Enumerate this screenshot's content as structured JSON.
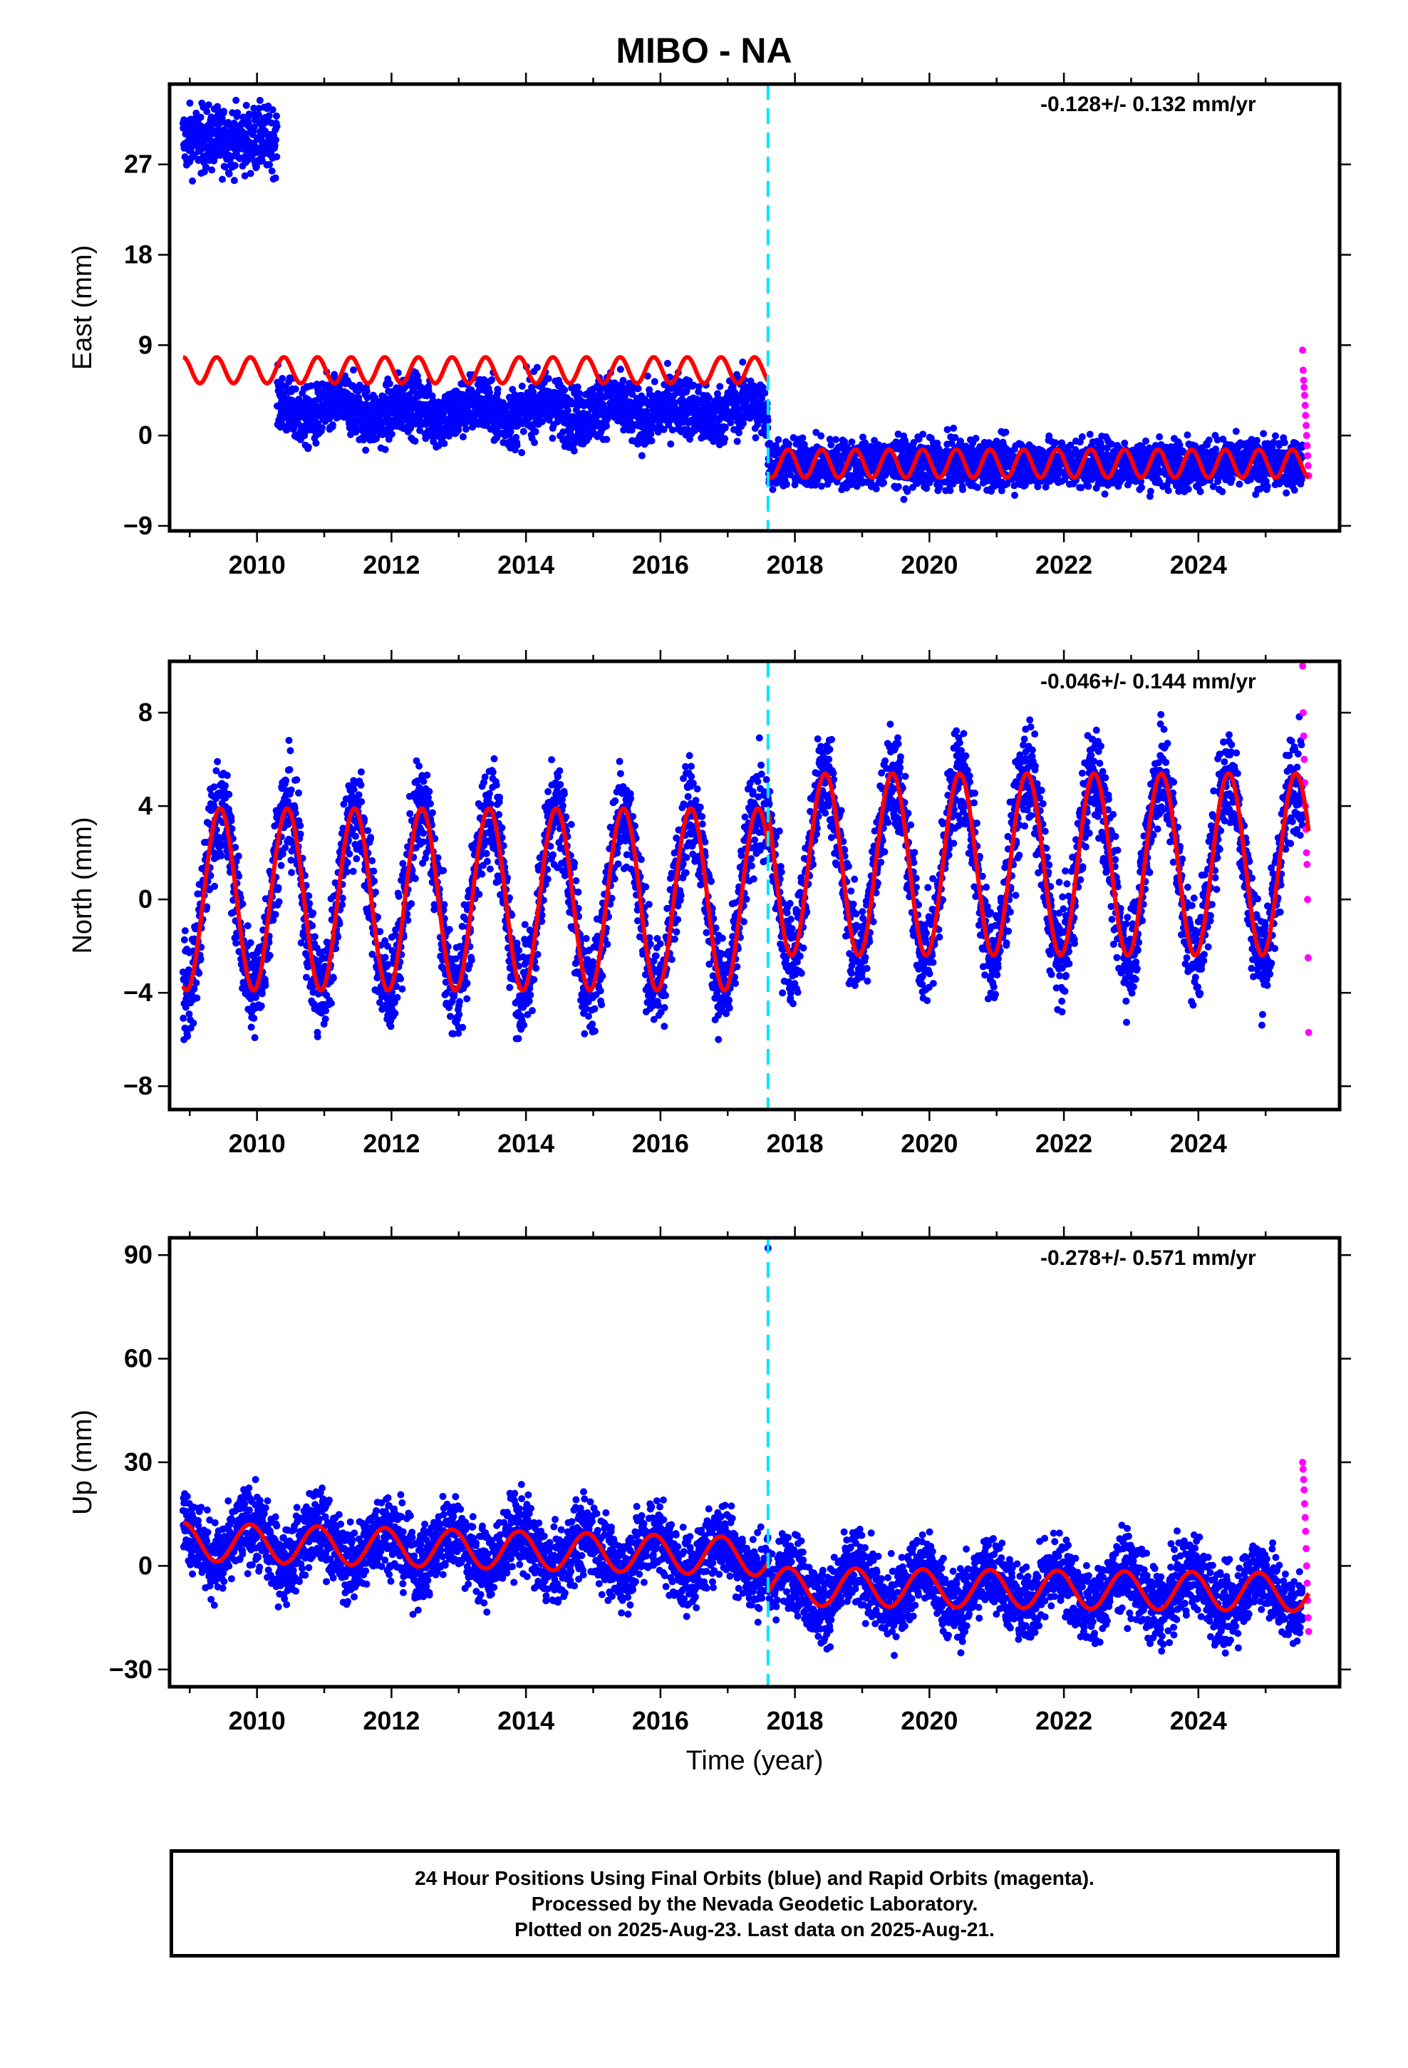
{
  "title": "MIBO - NA",
  "xlabel": "Time (year)",
  "caption": [
    "24 Hour Positions Using Final Orbits (blue) and Rapid Orbits (magenta).",
    "Processed by the Nevada Geodetic Laboratory.",
    "Plotted on 2025-Aug-23. Last data on 2025-Aug-21."
  ],
  "colors": {
    "final": "#0000ff",
    "rapid": "#ff00ff",
    "model": "#ff0000",
    "event": "#00e5ff"
  },
  "chart_data": [
    {
      "type": "scatter",
      "ylabel": "East (mm)",
      "rate": "-0.128+/- 0.132 mm/yr",
      "xlim": [
        2008.7,
        2026.1
      ],
      "ylim": [
        -9.5,
        35
      ],
      "xticks": [
        "2010",
        "2012",
        "2014",
        "2016",
        "2018",
        "2020",
        "2022",
        "2024"
      ],
      "yticks": [
        "-9",
        "0",
        "9",
        "18",
        "27"
      ],
      "event_line_x": 2017.6,
      "data_range": [
        2008.9,
        2025.64
      ],
      "model_segments": [
        {
          "x_start": 2008.9,
          "x_end": 2017.6,
          "offset": 6.5,
          "amplitude": 1.3
        },
        {
          "x_start": 2017.6,
          "x_end": 2025.64,
          "offset": -2.8,
          "amplitude": 1.4
        }
      ],
      "final_clusters": [
        {
          "x_start": 2008.9,
          "x_end": 2010.3,
          "mean": 29.5,
          "spread": 1.6
        },
        {
          "x_start": 2010.3,
          "x_end": 2017.6,
          "mean": 2.5,
          "spread": 1.5
        },
        {
          "x_start": 2017.6,
          "x_end": 2025.55,
          "mean": -2.8,
          "spread": 1.2
        }
      ],
      "rapid_points": {
        "x_start": 2025.55,
        "x_end": 2025.64,
        "values": [
          8.5,
          6.5,
          5.5,
          4.8,
          4,
          3,
          2,
          1,
          0,
          -1,
          -2,
          -3,
          -4
        ]
      }
    },
    {
      "type": "scatter",
      "ylabel": "North (mm)",
      "rate": "-0.046+/- 0.144 mm/yr",
      "xlim": [
        2008.7,
        2026.1
      ],
      "ylim": [
        -9,
        10.2
      ],
      "xticks": [
        "2010",
        "2012",
        "2014",
        "2016",
        "2018",
        "2020",
        "2022",
        "2024"
      ],
      "yticks": [
        "-8",
        "-4",
        "0",
        "4",
        "8"
      ],
      "event_line_x": 2017.6,
      "data_range": [
        2008.9,
        2025.64
      ],
      "model_segments": [
        {
          "x_start": 2008.9,
          "x_end": 2017.6,
          "offset": 0,
          "amplitude": 3.9
        },
        {
          "x_start": 2017.6,
          "x_end": 2025.64,
          "offset": 1.5,
          "amplitude": 3.9
        }
      ],
      "final_clusters": [
        {
          "x_start": 2008.9,
          "x_end": 2025.55,
          "mean": 0,
          "spread": 1.1
        }
      ],
      "rapid_points": {
        "x_start": 2025.55,
        "x_end": 2025.64,
        "values": [
          10,
          8,
          7,
          6,
          5,
          4,
          3,
          2,
          1.5,
          0,
          -2.5,
          -5.7
        ]
      }
    },
    {
      "type": "scatter",
      "ylabel": "Up (mm)",
      "rate": "-0.278+/- 0.571 mm/yr",
      "xlim": [
        2008.7,
        2026.1
      ],
      "ylim": [
        -35,
        95
      ],
      "xticks": [
        "2010",
        "2012",
        "2014",
        "2016",
        "2018",
        "2020",
        "2022",
        "2024"
      ],
      "yticks": [
        "-30",
        "0",
        "30",
        "60",
        "90"
      ],
      "event_line_x": 2017.6,
      "data_range": [
        2008.9,
        2025.64
      ],
      "model_segments": [
        {
          "x_start": 2008.9,
          "x_end": 2017.6,
          "offset": 7,
          "amplitude": 5.5,
          "trend": -0.5
        },
        {
          "x_start": 2017.6,
          "x_end": 2025.64,
          "offset": -6,
          "amplitude": 5.5,
          "trend": -0.2
        }
      ],
      "final_clusters": [
        {
          "x_start": 2008.9,
          "x_end": 2025.55,
          "mean": 2,
          "spread": 5.5
        }
      ],
      "outliers": [
        {
          "x": 2017.6,
          "y": 92
        }
      ],
      "rapid_points": {
        "x_start": 2025.55,
        "x_end": 2025.64,
        "values": [
          30,
          28,
          25,
          22,
          18,
          14,
          10,
          5,
          0,
          -5,
          -10,
          -15,
          -19
        ]
      }
    }
  ]
}
